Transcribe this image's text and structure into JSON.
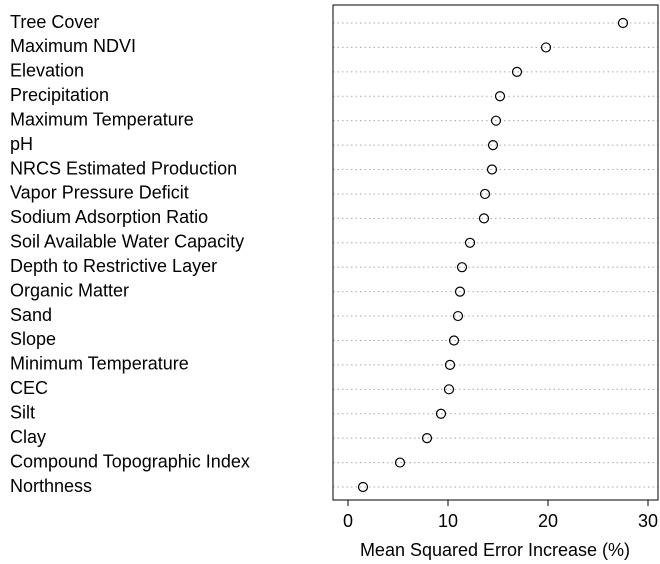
{
  "chart_data": {
    "type": "dot",
    "x_label": "Mean Squared Error Increase (%)",
    "categories": [
      "Tree Cover",
      "Maximum NDVI",
      "Elevation",
      "Precipitation",
      "Maximum Temperature",
      "pH",
      "NRCS Estimated Production",
      "Vapor Pressure Deficit",
      "Sodium Adsorption Ratio",
      "Soil Available Water Capacity",
      "Depth to Restrictive Layer",
      "Organic Matter",
      "Sand",
      "Slope",
      "Minimum Temperature",
      "CEC",
      "Silt",
      "Clay",
      "Compound Topographic Index",
      "Northness"
    ],
    "values": [
      27.5,
      19.8,
      16.9,
      15.2,
      14.8,
      14.5,
      14.4,
      13.7,
      13.6,
      12.2,
      11.4,
      11.2,
      11.0,
      10.6,
      10.2,
      10.1,
      9.3,
      7.9,
      5.2,
      1.5
    ],
    "color": "#000000",
    "xlim": [
      -1.5,
      31
    ],
    "xticks": [
      0,
      10,
      20,
      30
    ],
    "grid": true
  }
}
